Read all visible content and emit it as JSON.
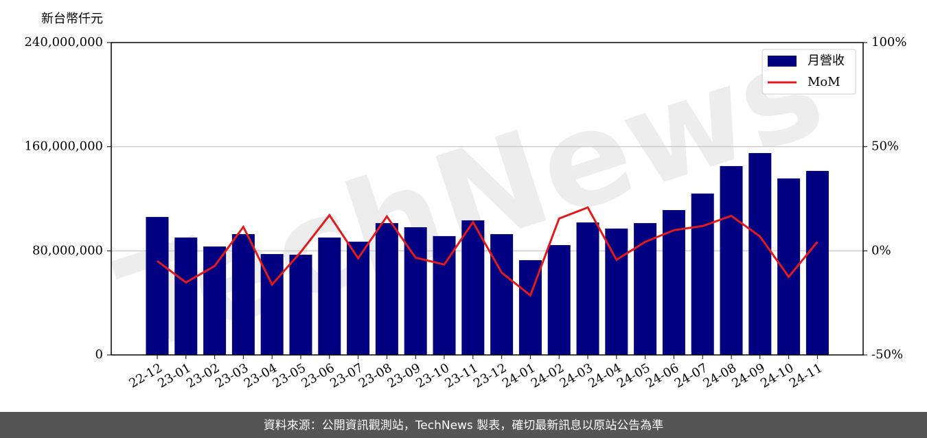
{
  "chart_data": {
    "type": "bar_line",
    "y_label": "新台幣仟元",
    "watermark": "TechNews",
    "footer": "資料來源：公開資訊觀測站，TechNews 製表，確切最新訊息以原站公告為準",
    "categories": [
      "22-12",
      "23-01",
      "23-02",
      "23-03",
      "23-04",
      "23-05",
      "23-06",
      "23-07",
      "23-08",
      "23-09",
      "23-10",
      "23-11",
      "23-12",
      "24-01",
      "24-02",
      "24-03",
      "24-04",
      "24-05",
      "24-06",
      "24-07",
      "24-08",
      "24-09",
      "24-10",
      "24-11"
    ],
    "series": [
      {
        "name": "月營收",
        "type": "bar",
        "color": "#000080",
        "values": [
          106000000,
          90200000,
          83300000,
          92800000,
          77500000,
          77000000,
          90200000,
          87000000,
          101300000,
          98100000,
          91300000,
          103400000,
          92800000,
          72800000,
          84400000,
          101800000,
          97100000,
          101300000,
          111300000,
          124000000,
          145100000,
          155100000,
          135600000,
          141400000
        ]
      },
      {
        "name": "MoM",
        "type": "line",
        "axis": "y2",
        "color": "#e31a1c",
        "values": [
          -4.9,
          -15.2,
          -7.3,
          11.5,
          -16.2,
          -0.6,
          17.1,
          -3.6,
          16.5,
          -3.3,
          -6.6,
          13.8,
          -10.5,
          -21.4,
          15.5,
          20.8,
          -4.3,
          4.3,
          9.9,
          11.9,
          16.8,
          6.9,
          -12.5,
          4.3
        ]
      }
    ],
    "ylim": [
      0,
      240000000
    ],
    "yticks": [
      0,
      {
        "value": 80000000,
        "label": "80,000,000"
      },
      {
        "value": 160000000,
        "label": "160,000,000"
      },
      {
        "value": 240000000,
        "label": "240,000,000"
      }
    ],
    "y2lim": [
      -50,
      100
    ],
    "y2ticks": [
      {
        "value": -50,
        "label": "-50%"
      },
      {
        "value": 0,
        "label": "0%"
      },
      {
        "value": 50,
        "label": "50%"
      },
      {
        "value": 100,
        "label": "100%"
      }
    ],
    "grid": true,
    "legend": "upper right"
  }
}
